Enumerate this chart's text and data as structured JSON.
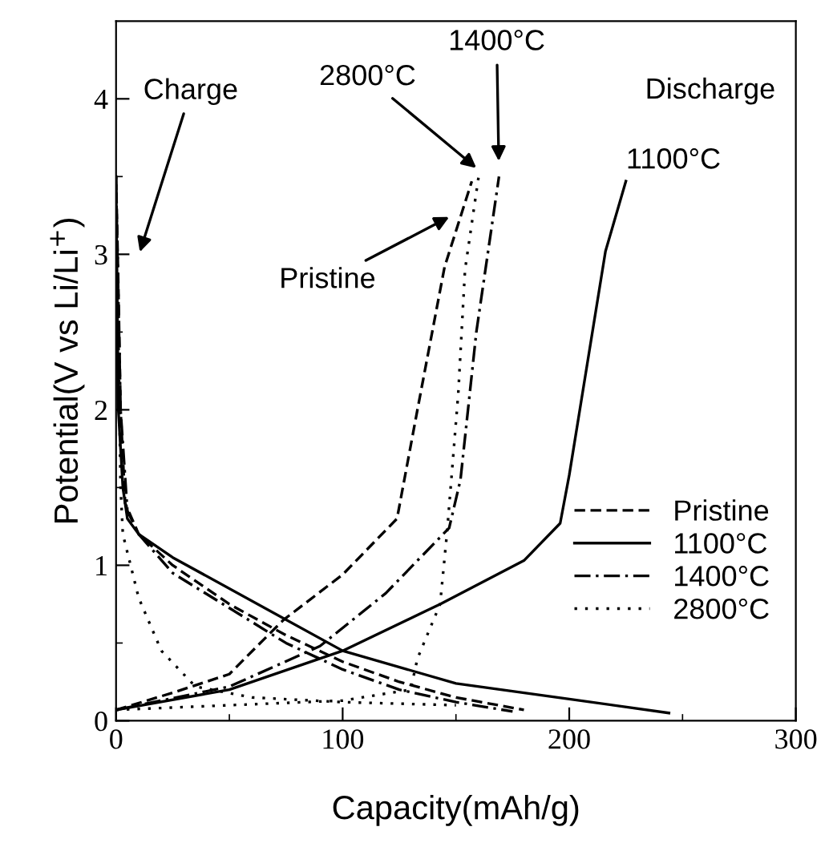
{
  "chart_data": {
    "type": "line",
    "xlabel": "Capacity(mAh/g)",
    "ylabel": "Potential(V vs Li/Li$^{+}$)",
    "xlim": [
      0,
      300
    ],
    "ylim": [
      0,
      4.5
    ],
    "xticks": [
      0,
      100,
      200,
      300
    ],
    "yticks": [
      0,
      1,
      2,
      3,
      4
    ],
    "grid": false,
    "legend": "bottom right",
    "marker": "none",
    "series": [
      {
        "name": "Pristine",
        "color": "#000000",
        "line_style": "dashed",
        "x": [
          0,
          1,
          2,
          4,
          10,
          25,
          50,
          75,
          100,
          125,
          150,
          180
        ],
        "values": [
          3.5,
          2.8,
          2.0,
          1.4,
          1.2,
          1.0,
          0.75,
          0.55,
          0.38,
          0.25,
          0.15,
          0.07
        ]
      },
      {
        "color": "#000000",
        "line_style": "dashed",
        "x": [
          0,
          25,
          50,
          65,
          74,
          100,
          124,
          133,
          145,
          157
        ],
        "values": [
          0.07,
          0.18,
          0.3,
          0.52,
          0.65,
          0.94,
          1.3,
          2.0,
          2.92,
          3.47
        ]
      },
      {
        "name": "1100°C",
        "color": "#000000",
        "line_style": "solid",
        "x": [
          0,
          1,
          3,
          5,
          10,
          25,
          100,
          150,
          200,
          244
        ],
        "values": [
          3.5,
          2.0,
          1.5,
          1.3,
          1.2,
          1.05,
          0.45,
          0.24,
          0.14,
          0.05
        ]
      },
      {
        "color": "#000000",
        "line_style": "solid",
        "x": [
          0,
          50,
          100,
          143,
          180,
          196,
          200,
          216,
          225
        ],
        "values": [
          0.07,
          0.2,
          0.45,
          0.75,
          1.03,
          1.27,
          1.58,
          3.02,
          3.47
        ]
      },
      {
        "name": "1400°C",
        "color": "#000000",
        "line_style": "dashdot",
        "x": [
          0,
          2,
          5,
          10,
          25,
          75,
          100,
          125,
          150,
          175
        ],
        "values": [
          3.45,
          2.0,
          1.35,
          1.2,
          0.95,
          0.5,
          0.33,
          0.2,
          0.12,
          0.06
        ]
      },
      {
        "color": "#000000",
        "line_style": "dashdot",
        "x": [
          0,
          50,
          90,
          119,
          147,
          152,
          159,
          169
        ],
        "values": [
          0.07,
          0.22,
          0.48,
          0.82,
          1.24,
          1.55,
          2.5,
          3.5
        ]
      },
      {
        "name": "2800°C",
        "color": "#000000",
        "line_style": "dotted",
        "x": [
          0,
          2,
          3,
          10,
          20,
          35,
          60,
          100,
          150
        ],
        "values": [
          3.5,
          1.5,
          1.2,
          0.79,
          0.45,
          0.22,
          0.15,
          0.12,
          0.1
        ]
      },
      {
        "color": "#000000",
        "line_style": "dotted",
        "x": [
          0,
          50,
          100,
          130,
          133,
          143,
          146,
          151,
          154,
          160
        ],
        "values": [
          0.07,
          0.1,
          0.13,
          0.2,
          0.4,
          0.75,
          1.2,
          2.1,
          2.9,
          3.5
        ]
      }
    ],
    "annotations": [
      "Charge",
      "Discharge",
      "2800°C",
      "1400°C",
      "1100°C",
      "Pristine"
    ]
  }
}
